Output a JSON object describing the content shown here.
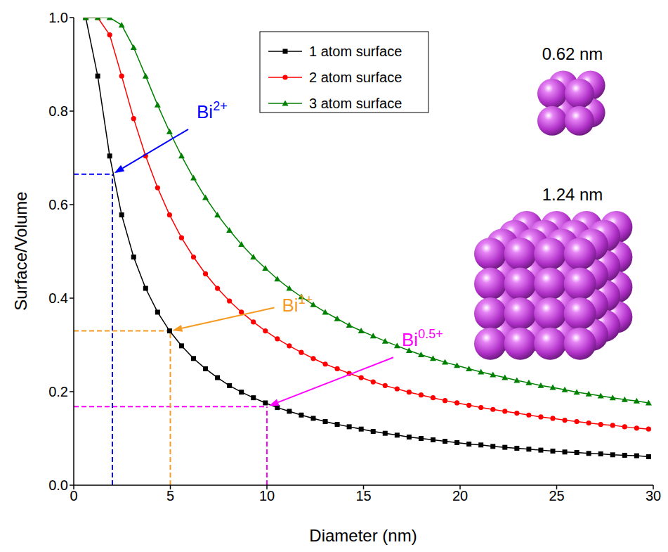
{
  "chart_data": {
    "type": "line",
    "x_label": "Diameter (nm)",
    "y_label": "Surface/Volume",
    "x": [
      0.62,
      1.24,
      1.86,
      2.48,
      3.1,
      3.72,
      4.34,
      4.96,
      5.58,
      6.2,
      6.82,
      7.44,
      8.06,
      8.68,
      9.3,
      9.92,
      10.54,
      11.16,
      11.78,
      12.4,
      13.02,
      13.64,
      14.26,
      14.88,
      15.5,
      16.12,
      16.74,
      17.36,
      17.98,
      18.6,
      19.22,
      19.84,
      20.46,
      21.08,
      21.7,
      22.32,
      22.94,
      23.56,
      24.18,
      24.8,
      25.42,
      26.04,
      26.66,
      27.28,
      27.9,
      28.52,
      29.14,
      29.76
    ],
    "series": [
      {
        "name": "1 atom surface",
        "color": "#000000",
        "marker": "square",
        "values": [
          1,
          0.875,
          0.704,
          0.578,
          0.488,
          0.421,
          0.37,
          0.33,
          0.298,
          0.271,
          0.249,
          0.23,
          0.213,
          0.199,
          0.187,
          0.176,
          0.166,
          0.158,
          0.15,
          0.143,
          0.136,
          0.13,
          0.125,
          0.12,
          0.115,
          0.111,
          0.107,
          0.103,
          0.1,
          0.097,
          0.094,
          0.091,
          0.088,
          0.086,
          0.083,
          0.081,
          0.079,
          0.077,
          0.075,
          0.073,
          0.071,
          0.07,
          0.068,
          0.067,
          0.065,
          0.064,
          0.063,
          0.061
        ]
      },
      {
        "name": "2 atom surface",
        "color": "#ff0000",
        "marker": "circle",
        "values": [
          1,
          1,
          0.963,
          0.875,
          0.784,
          0.704,
          0.636,
          0.578,
          0.529,
          0.488,
          0.452,
          0.421,
          0.394,
          0.37,
          0.349,
          0.33,
          0.313,
          0.298,
          0.284,
          0.271,
          0.259,
          0.249,
          0.239,
          0.23,
          0.221,
          0.213,
          0.206,
          0.199,
          0.193,
          0.187,
          0.181,
          0.176,
          0.171,
          0.166,
          0.162,
          0.158,
          0.154,
          0.15,
          0.146,
          0.143,
          0.139,
          0.136,
          0.133,
          0.13,
          0.128,
          0.125,
          0.122,
          0.12
        ]
      },
      {
        "name": "3 atom surface",
        "color": "#008000",
        "marker": "triangle",
        "values": [
          1,
          1,
          1,
          0.984,
          0.936,
          0.875,
          0.813,
          0.756,
          0.704,
          0.657,
          0.615,
          0.578,
          0.545,
          0.515,
          0.488,
          0.464,
          0.441,
          0.421,
          0.403,
          0.386,
          0.37,
          0.356,
          0.342,
          0.33,
          0.319,
          0.308,
          0.298,
          0.288,
          0.279,
          0.271,
          0.263,
          0.256,
          0.249,
          0.242,
          0.236,
          0.23,
          0.224,
          0.219,
          0.213,
          0.209,
          0.204,
          0.199,
          0.195,
          0.191,
          0.187,
          0.183,
          0.18,
          0.176
        ]
      }
    ],
    "xlim": [
      0,
      30
    ],
    "xticks": [
      0,
      5,
      10,
      15,
      20,
      25,
      30
    ],
    "ylim": [
      0,
      1
    ],
    "yticks": [
      {
        "value": 0,
        "label": "0.0"
      },
      0.2,
      0.4,
      0.6,
      0.8,
      {
        "value": 1,
        "label": "1.0"
      }
    ],
    "grid": false,
    "legend": "top",
    "annotations": [
      {
        "text": "Bi",
        "superscript": "2+",
        "x": 2,
        "y": 0.665,
        "color": "#0000ff",
        "line_style": "dashed"
      },
      {
        "text": "Bi",
        "superscript": "1+",
        "x": 5,
        "y": 0.33,
        "color": "#f59a23",
        "line_style": "dashed"
      },
      {
        "text": "Bi",
        "superscript": "0.5+",
        "x": 10,
        "y": 0.168,
        "color": "#ff00ff",
        "line_style": "dashed"
      }
    ],
    "insets": [
      {
        "label": "0.62 nm",
        "atoms_per_edge": 2
      },
      {
        "label": "1.24 nm",
        "atoms_per_edge": 4
      }
    ]
  }
}
